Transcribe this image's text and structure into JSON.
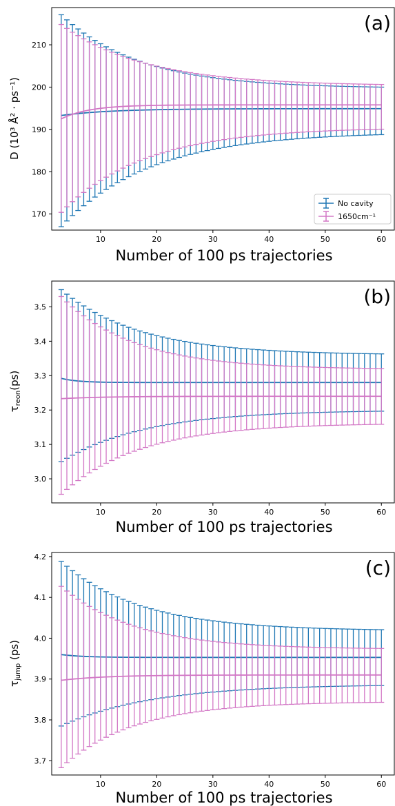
{
  "chart_data": [
    {
      "type": "line",
      "panel_label": "(a)",
      "xlabel": "Number of 100 ps trajectories",
      "ylabel": "D (10³ Å² · ps⁻¹)",
      "xlim": [
        1.3,
        62.3
      ],
      "ylim": [
        166.2,
        218.8
      ],
      "xticks": [
        10,
        20,
        30,
        40,
        50,
        60
      ],
      "yticks": [
        170,
        180,
        190,
        200,
        210
      ],
      "legend": {
        "placement": "lower-right",
        "entries": [
          "No cavity",
          "1650cm⁻¹"
        ]
      },
      "series": [
        {
          "name": "No cavity",
          "color": "#1f77b4",
          "n": [
            3,
            60
          ],
          "mean": {
            "start": 193.3,
            "end": 194.9,
            "tau": 9
          },
          "upper": {
            "start": 217.1,
            "end": 199.7,
            "tau": 14
          },
          "lower": {
            "start": 167.0,
            "end": 189.4,
            "tau": 16
          }
        },
        {
          "name": "1650cm⁻¹",
          "color": "#d378c6",
          "n": [
            3,
            60
          ],
          "mean": {
            "start": 192.5,
            "end": 195.8,
            "tau": 5
          },
          "upper": {
            "start": 214.8,
            "end": 200.3,
            "tau": 15
          },
          "lower": {
            "start": 170.4,
            "end": 190.5,
            "tau": 15
          }
        }
      ]
    },
    {
      "type": "line",
      "panel_label": "(b)",
      "xlabel": "Number of 100 ps trajectories",
      "ylabel": "τ_reon (ps)",
      "xlim": [
        1.3,
        62.3
      ],
      "ylim": [
        2.93,
        3.575
      ],
      "xticks": [
        10,
        20,
        30,
        40,
        50,
        60
      ],
      "yticks": [
        3.0,
        3.1,
        3.2,
        3.3,
        3.4,
        3.5
      ],
      "series": [
        {
          "name": "",
          "color": "#1f77b4",
          "n": [
            3,
            60
          ],
          "mean": {
            "start": 3.292,
            "end": 3.28,
            "tau": 3
          },
          "upper": {
            "start": 3.55,
            "end": 3.36,
            "tau": 14
          },
          "lower": {
            "start": 3.05,
            "end": 3.2,
            "tau": 15
          }
        },
        {
          "name": "",
          "color": "#d378c6",
          "n": [
            3,
            60
          ],
          "mean": {
            "start": 3.233,
            "end": 3.24,
            "tau": 8
          },
          "upper": {
            "start": 3.53,
            "end": 3.318,
            "tau": 13
          },
          "lower": {
            "start": 2.955,
            "end": 3.162,
            "tau": 14
          }
        }
      ]
    },
    {
      "type": "line",
      "panel_label": "(c)",
      "xlabel": "Number of 100 ps trajectories",
      "ylabel": "τ_jump (ps)",
      "xlim": [
        1.3,
        62.3
      ],
      "ylim": [
        3.665,
        4.21
      ],
      "xticks": [
        10,
        20,
        30,
        40,
        50,
        60
      ],
      "yticks": [
        3.7,
        3.8,
        3.9,
        4.0,
        4.1,
        4.2
      ],
      "series": [
        {
          "name": "",
          "color": "#1f77b4",
          "n": [
            3,
            60
          ],
          "mean": {
            "start": 3.96,
            "end": 3.953,
            "tau": 4
          },
          "upper": {
            "start": 4.188,
            "end": 4.018,
            "tau": 14
          },
          "lower": {
            "start": 3.785,
            "end": 3.887,
            "tau": 16
          }
        },
        {
          "name": "",
          "color": "#d378c6",
          "n": [
            3,
            60
          ],
          "mean": {
            "start": 3.897,
            "end": 3.91,
            "tau": 8
          },
          "upper": {
            "start": 4.127,
            "end": 3.973,
            "tau": 13
          },
          "lower": {
            "start": 3.683,
            "end": 3.845,
            "tau": 13
          }
        }
      ]
    }
  ]
}
